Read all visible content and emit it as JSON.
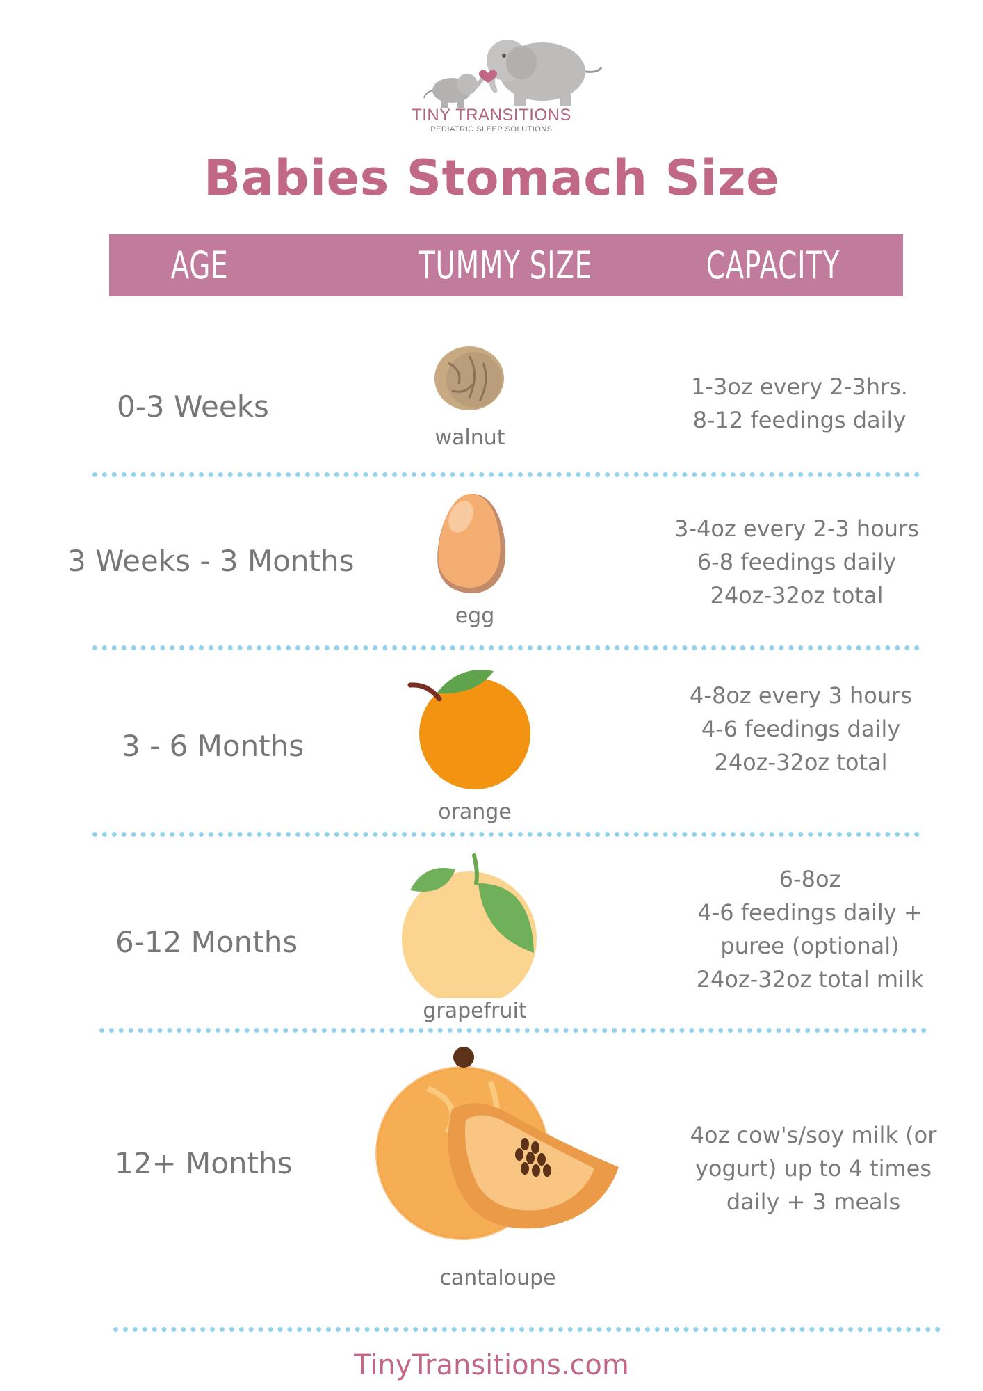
{
  "brand": {
    "name": "TINY TRANSITIONS",
    "tagline": "PEDIATRIC SLEEP SOLUTIONS",
    "logo_icon": "elephant-mother-baby-icon"
  },
  "title": "Babies Stomach Size",
  "table_header": {
    "age": "AGE",
    "tummy_size": "TUMMY SIZE",
    "capacity": "CAPACITY"
  },
  "rows": [
    {
      "age": "0-3 Weeks",
      "food": "walnut",
      "food_icon": "walnut-icon",
      "capacity": [
        "1-3oz every 2-3hrs.",
        "8-12 feedings daily"
      ]
    },
    {
      "age": "3 Weeks - 3 Months",
      "food": "egg",
      "food_icon": "egg-icon",
      "capacity": [
        "3-4oz every 2-3 hours",
        "6-8 feedings daily",
        "24oz-32oz total"
      ]
    },
    {
      "age": "3 - 6 Months",
      "food": "orange",
      "food_icon": "orange-icon",
      "capacity": [
        "4-8oz every 3 hours",
        "4-6 feedings daily",
        "24oz-32oz total"
      ]
    },
    {
      "age": "6-12 Months",
      "food": "grapefruit",
      "food_icon": "grapefruit-icon",
      "capacity": [
        "6-8oz",
        "4-6 feedings daily +",
        "puree (optional)",
        "24oz-32oz total milk"
      ]
    },
    {
      "age": "12+ Months",
      "food": "cantaloupe",
      "food_icon": "cantaloupe-icon",
      "capacity": [
        "4oz cow's/soy milk (or",
        "yogurt) up to 4 times",
        "daily + 3 meals"
      ]
    }
  ],
  "footer": "TinyTransitions.com",
  "colors": {
    "title_pink": "#c06886",
    "header_bar": "#c17b9d",
    "divider_blue": "#93d2ea",
    "text_gray": "#777777"
  }
}
